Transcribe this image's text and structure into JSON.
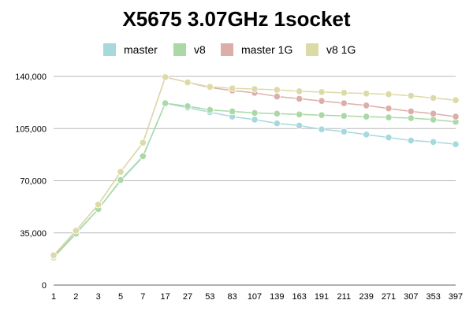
{
  "chart_data": {
    "type": "line",
    "title": "X5675 3.07GHz 1socket",
    "xlabel": "",
    "ylabel": "",
    "categories": [
      "1",
      "2",
      "3",
      "5",
      "7",
      "17",
      "27",
      "53",
      "83",
      "107",
      "139",
      "163",
      "191",
      "211",
      "239",
      "271",
      "307",
      "353",
      "397"
    ],
    "ylim": [
      0,
      140000
    ],
    "yticks": [
      0,
      35000,
      70000,
      105000,
      140000
    ],
    "ytick_labels": [
      "0",
      "35,000",
      "70,000",
      "105,000",
      "140,000"
    ],
    "grid": true,
    "legend_position": "top",
    "series": [
      {
        "name": "master",
        "color": "#a6d9dc",
        "values": [
          19000,
          35000,
          51000,
          70000,
          86000,
          122000,
          119000,
          116000,
          113000,
          111000,
          108500,
          107000,
          104500,
          103000,
          101000,
          99000,
          97000,
          96000,
          94500
        ]
      },
      {
        "name": "v8",
        "color": "#aad9a6",
        "values": [
          18500,
          34500,
          51000,
          70500,
          86500,
          122000,
          120000,
          117500,
          116500,
          115500,
          115000,
          114500,
          114000,
          113500,
          113000,
          112500,
          112000,
          111000,
          109500
        ]
      },
      {
        "name": "master 1G",
        "color": "#dcaeaa",
        "values": [
          19500,
          36500,
          54000,
          76000,
          95500,
          139500,
          136000,
          132500,
          130500,
          129000,
          126500,
          125000,
          123500,
          122000,
          120500,
          118500,
          116500,
          115000,
          113000
        ]
      },
      {
        "name": "v8 1G",
        "color": "#dcdaa6",
        "values": [
          20000,
          36500,
          54000,
          76000,
          95500,
          139500,
          136000,
          133000,
          132000,
          131500,
          131000,
          130000,
          129500,
          129000,
          128500,
          128000,
          127000,
          125500,
          124000
        ]
      }
    ]
  }
}
